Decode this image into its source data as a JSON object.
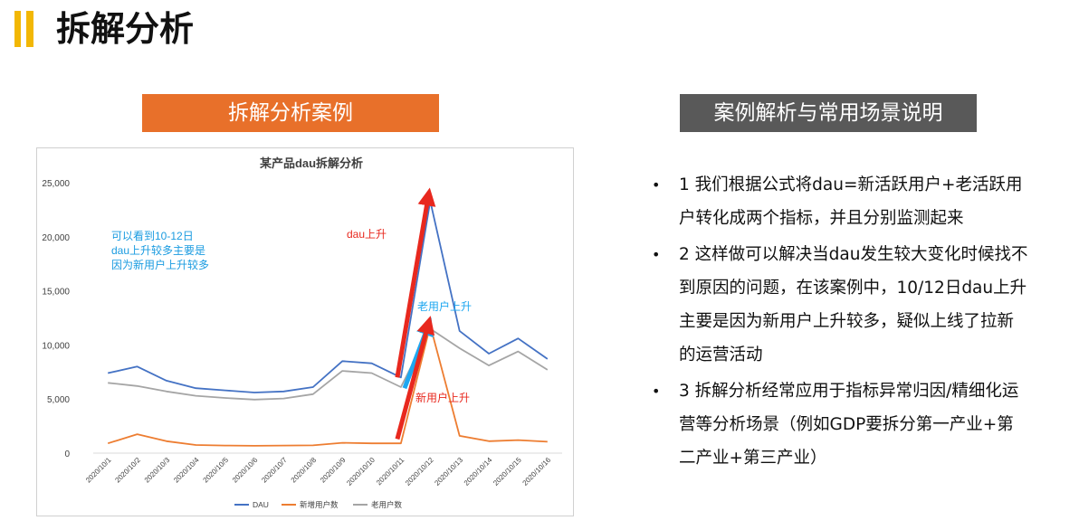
{
  "page": {
    "title": "拆解分析",
    "left_banner": "拆解分析案例",
    "right_banner": "案例解析与常用场景说明"
  },
  "notes": [
    "1 我们根据公式将dau=新活跃用户+老活跃用户转化成两个指标，并且分别监测起来",
    "2 这样做可以解决当dau发生较大变化时候找不到原因的问题，在该案例中，10/12日dau上升主要是因为新用户上升较多，疑似上线了拉新的运营活动",
    "3 拆解分析经常应用于指标异常归因/精细化运营等分析场景（例如GDP要拆分第一产业+第二产业+第三产业）"
  ],
  "colors": {
    "title_accent": "#f2b705",
    "left_banner": "#e8702a",
    "right_banner": "#595959",
    "dau": "#4472c4",
    "new_users": "#ed7d31",
    "old_users": "#a5a5a5",
    "red_arrow": "#e8281e",
    "blue_arrow": "#1ea7f0",
    "annotation_text": "#1a9be0"
  },
  "chart_data": {
    "type": "line",
    "title": "某产品dau拆解分析",
    "categories": [
      "2020/10/1",
      "2020/10/2",
      "2020/10/3",
      "2020/10/4",
      "2020/10/5",
      "2020/10/6",
      "2020/10/7",
      "2020/10/8",
      "2020/10/9",
      "2020/10/10",
      "2020/10/11",
      "2020/10/12",
      "2020/10/13",
      "2020/10/14",
      "2020/10/15",
      "2020/10/16"
    ],
    "series": [
      {
        "name": "DAU",
        "color": "#4472c4",
        "values": [
          7400,
          8000,
          6700,
          6000,
          5800,
          5600,
          5700,
          6100,
          8500,
          8300,
          7000,
          23300,
          11300,
          9200,
          10600,
          8700
        ]
      },
      {
        "name": "新增用户数",
        "color": "#ed7d31",
        "values": [
          900,
          1750,
          1100,
          750,
          700,
          680,
          700,
          720,
          950,
          900,
          900,
          11800,
          1600,
          1100,
          1200,
          1050
        ]
      },
      {
        "name": "老用户数",
        "color": "#a5a5a5",
        "values": [
          6500,
          6200,
          5700,
          5300,
          5100,
          4950,
          5050,
          5450,
          7600,
          7400,
          6100,
          11500,
          9700,
          8100,
          9400,
          7700
        ]
      }
    ],
    "ylim": [
      0,
      25000
    ],
    "yticks": [
      "25,000",
      "20,000",
      "15,000",
      "10,000",
      "5,000",
      "0"
    ],
    "ytick_values": [
      25000,
      20000,
      15000,
      10000,
      5000,
      0
    ],
    "grid": false,
    "legend_position": "bottom",
    "annotations": {
      "note": [
        "可以看到10-12日",
        "dau上升较多主要是",
        "因为新用户上升较多"
      ],
      "dau_up": "dau上升",
      "old_up": "老用户上升",
      "new_up": "新用户上升"
    },
    "arrows": [
      {
        "label": "dau上升",
        "from": {
          "x": "2020/10/11",
          "y": 7000
        },
        "to": {
          "x": "2020/10/12",
          "y": 23300
        }
      },
      {
        "label": "老用户上升",
        "from": {
          "x": "2020/10/11",
          "y": 6000
        },
        "to": {
          "x": "2020/10/12",
          "y": 11500
        }
      },
      {
        "label": "新用户上升",
        "from": {
          "x": "2020/10/11",
          "y": 1300
        },
        "to": {
          "x": "2020/10/12",
          "y": 11800
        }
      }
    ]
  }
}
